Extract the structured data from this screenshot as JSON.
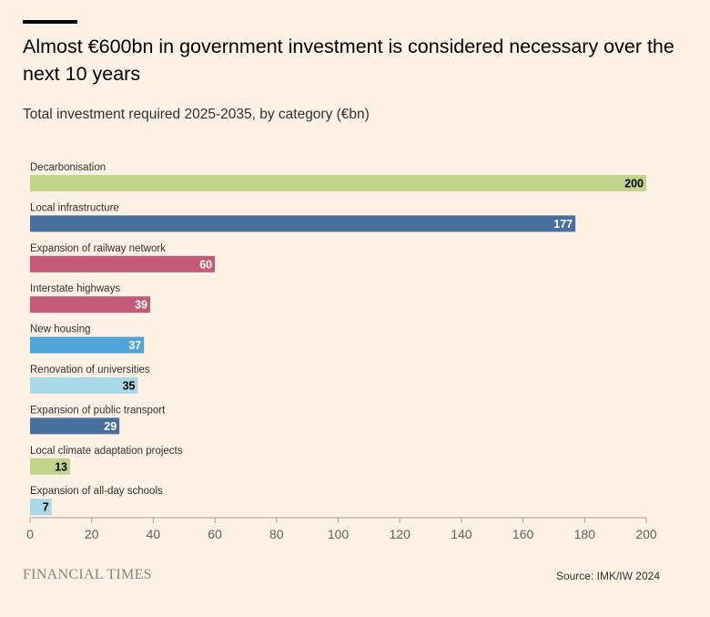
{
  "header": {
    "title": "Almost €600bn in government investment is considered necessary over the next 10 years",
    "subtitle": "Total investment required 2025-2035, by category (€bn)"
  },
  "footer": {
    "brand": "FINANCIAL TIMES",
    "source": "Source: IMK/IW 2024"
  },
  "chart_data": {
    "type": "bar",
    "orientation": "horizontal",
    "title": "Almost €600bn in government investment is considered necessary over the next 10 years",
    "subtitle": "Total investment required 2025-2035, by category (€bn)",
    "xlabel": "",
    "ylabel": "",
    "xlim": [
      0,
      200
    ],
    "xticks": [
      0,
      20,
      40,
      60,
      80,
      100,
      120,
      140,
      160,
      180,
      200
    ],
    "grid": false,
    "categories": [
      "Decarbonisation",
      "Local infrastructure",
      "Expansion of railway network",
      "Interstate highways",
      "New housing",
      "Renovation of universities",
      "Expansion of public transport",
      "Local climate adaptation projects",
      "Expansion of all-day schools"
    ],
    "values": [
      200,
      177,
      60,
      39,
      37,
      35,
      29,
      13,
      7
    ],
    "colors": [
      "#c1d48a",
      "#48709c",
      "#c25a78",
      "#c25a78",
      "#4ea5d9",
      "#a9d9e8",
      "#48709c",
      "#c1d48a",
      "#a9d9e8"
    ],
    "label_colors": [
      "#000000",
      "#ffffff",
      "#ffffff",
      "#ffffff",
      "#ffffff",
      "#000000",
      "#ffffff",
      "#000000",
      "#000000"
    ]
  }
}
